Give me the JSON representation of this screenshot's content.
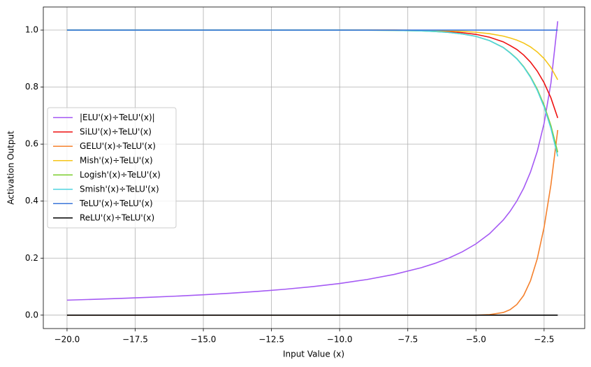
{
  "chart_data": {
    "type": "line",
    "xlabel": "Input Value (x)",
    "ylabel": "Activation Output",
    "x": [
      -20,
      -19,
      -18,
      -17,
      -16,
      -15,
      -14,
      -13,
      -12,
      -11,
      -10,
      -9,
      -8,
      -7,
      -6.5,
      -6,
      -5.5,
      -5,
      -4.5,
      -4,
      -3.75,
      -3.5,
      -3.25,
      -3,
      -2.75,
      -2.5,
      -2.25,
      -2
    ],
    "series": [
      {
        "name": "|ELU'(x)÷TeLU'(x)|",
        "color": "#a55af4",
        "values": [
          0.0526,
          0.0556,
          0.0588,
          0.0625,
          0.0667,
          0.0714,
          0.0769,
          0.0833,
          0.0909,
          0.1,
          0.1111,
          0.125,
          0.1429,
          0.1667,
          0.1818,
          0.2,
          0.2222,
          0.25,
          0.2857,
          0.3335,
          0.3639,
          0.4005,
          0.4453,
          0.5017,
          0.5747,
          0.6732,
          0.8138,
          1.0311
        ]
      },
      {
        "name": "SiLU'(x)÷TeLU'(x)",
        "color": "#ee1111",
        "values": [
          1,
          1,
          1,
          1,
          1,
          1,
          1,
          1,
          1,
          1,
          1,
          1,
          1,
          0.998,
          0.9967,
          0.9945,
          0.9909,
          0.985,
          0.975,
          0.9588,
          0.946,
          0.9319,
          0.9126,
          0.8877,
          0.856,
          0.8152,
          0.7623,
          0.6917
        ]
      },
      {
        "name": "GELU'(x)÷TeLU'(x)",
        "color": "#f5812d",
        "values": [
          0,
          0,
          0,
          0,
          0,
          0,
          0,
          0,
          0,
          0,
          0,
          0,
          0,
          0,
          0,
          0,
          0,
          0,
          0.0018,
          0.0092,
          0.0191,
          0.0374,
          0.0691,
          0.1204,
          0.198,
          0.3084,
          0.457,
          0.6494
        ]
      },
      {
        "name": "Mish'(x)÷TeLU'(x)",
        "color": "#f5c518",
        "values": [
          1,
          1,
          1,
          1,
          1,
          1,
          1,
          1,
          1,
          1,
          1,
          1,
          1,
          0.999,
          0.9984,
          0.9973,
          0.9955,
          0.9924,
          0.9873,
          0.979,
          0.9725,
          0.9649,
          0.9546,
          0.941,
          0.9233,
          0.9,
          0.8688,
          0.8256
        ]
      },
      {
        "name": "Logish'(x)÷TeLU'(x)",
        "color": "#7ccd2e",
        "values": [
          1,
          1,
          1,
          1,
          1,
          1,
          1,
          1,
          1,
          1,
          1,
          0.9996,
          0.9989,
          0.997,
          0.9951,
          0.9918,
          0.9864,
          0.978,
          0.963,
          0.9391,
          0.921,
          0.8999,
          0.8721,
          0.8369,
          0.7925,
          0.7363,
          0.6648,
          0.5715
        ]
      },
      {
        "name": "Smish'(x)÷TeLU'(x)",
        "color": "#50d4e0",
        "values": [
          1,
          1,
          1,
          1,
          1,
          1,
          1,
          1,
          1,
          1,
          1,
          0.9996,
          0.9989,
          0.997,
          0.9951,
          0.9918,
          0.9864,
          0.978,
          0.963,
          0.9387,
          0.92,
          0.899,
          0.8706,
          0.8345,
          0.7886,
          0.7303,
          0.6555,
          0.5571
        ]
      },
      {
        "name": "TeLU'(x)÷TeLU'(x)",
        "color": "#3a75d8",
        "values": [
          1,
          1,
          1,
          1,
          1,
          1,
          1,
          1,
          1,
          1,
          1,
          1,
          1,
          1,
          1,
          1,
          1,
          1,
          1,
          1,
          1,
          1,
          1,
          1,
          1,
          1,
          1,
          1
        ]
      },
      {
        "name": "ReLU'(x)÷TeLU'(x)",
        "color": "#000000",
        "values": [
          0,
          0,
          0,
          0,
          0,
          0,
          0,
          0,
          0,
          0,
          0,
          0,
          0,
          0,
          0,
          0,
          0,
          0,
          0,
          0,
          0,
          0,
          0,
          0,
          0,
          0,
          0,
          0
        ]
      }
    ],
    "xlim": [
      -20.87,
      -1.01
    ],
    "ylim": [
      -0.047,
      1.081
    ],
    "xticks": [
      {
        "value": -20,
        "label": "−20.0"
      },
      {
        "value": -17.5,
        "label": "−17.5"
      },
      {
        "value": -15,
        "label": "−15.0"
      },
      {
        "value": -12.5,
        "label": "−12.5"
      },
      {
        "value": -10,
        "label": "−10.0"
      },
      {
        "value": -7.5,
        "label": "−7.5"
      },
      {
        "value": -5,
        "label": "−5.0"
      },
      {
        "value": -2.5,
        "label": "−2.5"
      }
    ],
    "yticks": [
      {
        "value": 0,
        "label": "0.0"
      },
      {
        "value": 0.2,
        "label": "0.2"
      },
      {
        "value": 0.4,
        "label": "0.4"
      },
      {
        "value": 0.6,
        "label": "0.6"
      },
      {
        "value": 0.8,
        "label": "0.8"
      },
      {
        "value": 1,
        "label": "1.0"
      }
    ],
    "grid": true,
    "legend": "center left"
  }
}
